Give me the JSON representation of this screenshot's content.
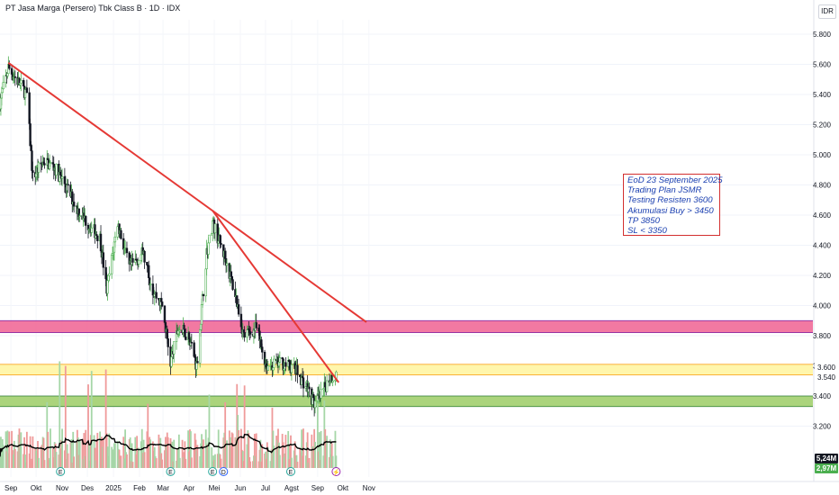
{
  "header": {
    "symbol_line": "PT Jasa Marga (Persero) Tbk Class B · 1D · IDX"
  },
  "currency": "IDR",
  "note": {
    "lines": [
      "EoD 23 September 2025",
      "Trading Plan JSMR",
      "Testing Resisten 3600",
      "Akumulasi Buy > 3450",
      "TP 3850",
      "SL < 3350"
    ],
    "text_color": "#1a3fb0",
    "border_color": "#d32f2f"
  },
  "price_tags": {
    "current": "3.540",
    "level": "3.600"
  },
  "volume_tags": {
    "volume": "5,24M",
    "volume_ma": "2,97M",
    "volume_bg": "#131722",
    "ma_bg": "#4caf50"
  },
  "event_markers": {
    "earnings": "E",
    "dividend": "D",
    "split": "⚡"
  },
  "colors": {
    "up": "#4caf50",
    "down": "#131722",
    "trendline": "#e53935",
    "resistance_zone": "#f06292",
    "mid_zone": "#fff59d",
    "support_zone": "#9ccc65",
    "volume_ma_line": "#000000"
  },
  "chart_data": {
    "type": "candlestick",
    "y_ticks": [
      "5.800",
      "5.600",
      "5.400",
      "5.200",
      "5.000",
      "4.800",
      "4.600",
      "4.400",
      "4.200",
      "4.000",
      "3.800",
      "3.600",
      "3.400",
      "3.200"
    ],
    "y_range": [
      3000,
      5900
    ],
    "x_ticks": [
      "Sep",
      "Okt",
      "Nov",
      "Des",
      "2025",
      "Feb",
      "Mar",
      "Apr",
      "Mei",
      "Jun",
      "Jul",
      "Agst",
      "Sep",
      "Okt",
      "Nov"
    ],
    "zones": [
      {
        "name": "resistance",
        "low": 3820,
        "high": 3900
      },
      {
        "name": "mid",
        "low": 3540,
        "high": 3610
      },
      {
        "name": "support",
        "low": 3330,
        "high": 3400
      }
    ],
    "trendlines": [
      {
        "from": {
          "date": "2024-08-29",
          "price": 5610
        },
        "to": {
          "date": "2025-10-29",
          "price": 3890
        }
      },
      {
        "from": {
          "date": "2025-04-29",
          "price": 4630
        },
        "to": {
          "date": "2025-09-26",
          "price": 3490
        }
      }
    ],
    "price_path": [
      {
        "date": "2024-08-19",
        "price": 5350
      },
      {
        "date": "2024-08-29",
        "price": 5580
      },
      {
        "date": "2024-09-10",
        "price": 5480
      },
      {
        "date": "2024-09-20",
        "price": 5400
      },
      {
        "date": "2024-09-27",
        "price": 4850
      },
      {
        "date": "2024-10-10",
        "price": 4960
      },
      {
        "date": "2024-10-22",
        "price": 4920
      },
      {
        "date": "2024-11-05",
        "price": 4800
      },
      {
        "date": "2024-11-18",
        "price": 4650
      },
      {
        "date": "2024-12-02",
        "price": 4540
      },
      {
        "date": "2024-12-16",
        "price": 4450
      },
      {
        "date": "2024-12-24",
        "price": 4100
      },
      {
        "date": "2025-01-06",
        "price": 4550
      },
      {
        "date": "2025-01-20",
        "price": 4250
      },
      {
        "date": "2025-02-05",
        "price": 4350
      },
      {
        "date": "2025-02-17",
        "price": 4100
      },
      {
        "date": "2025-02-28",
        "price": 4000
      },
      {
        "date": "2025-03-10",
        "price": 3620
      },
      {
        "date": "2025-03-19",
        "price": 3850
      },
      {
        "date": "2025-04-01",
        "price": 3800
      },
      {
        "date": "2025-04-10",
        "price": 3600
      },
      {
        "date": "2025-04-22",
        "price": 4350
      },
      {
        "date": "2025-04-29",
        "price": 4550
      },
      {
        "date": "2025-05-15",
        "price": 4300
      },
      {
        "date": "2025-05-27",
        "price": 4050
      },
      {
        "date": "2025-06-05",
        "price": 3800
      },
      {
        "date": "2025-06-20",
        "price": 3850
      },
      {
        "date": "2025-07-02",
        "price": 3600
      },
      {
        "date": "2025-07-20",
        "price": 3620
      },
      {
        "date": "2025-08-05",
        "price": 3580
      },
      {
        "date": "2025-08-20",
        "price": 3450
      },
      {
        "date": "2025-08-28",
        "price": 3350
      },
      {
        "date": "2025-09-05",
        "price": 3400
      },
      {
        "date": "2025-09-15",
        "price": 3520
      },
      {
        "date": "2025-09-23",
        "price": 3540
      }
    ]
  }
}
